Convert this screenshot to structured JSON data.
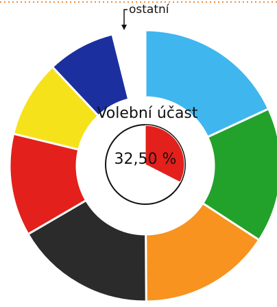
{
  "chart_data": [
    {
      "type": "donut",
      "categories": [
        null,
        null,
        null,
        null,
        null,
        null,
        null,
        "ostatní"
      ],
      "values": [
        18.1,
        16.1,
        15.7,
        16.7,
        12.2,
        9.2,
        8.1,
        3.9
      ],
      "colors": [
        "#3fb6ee",
        "#22a22a",
        "#f7931e",
        "#2b2b2b",
        "#e3201b",
        "#f6e21a",
        "#1b2f9e",
        "#ffffff"
      ]
    },
    {
      "type": "pie",
      "title": "Volební účast",
      "values": [
        32.5
      ],
      "value_labels": [
        "32,50 %"
      ],
      "color": "#e3201b"
    }
  ]
}
